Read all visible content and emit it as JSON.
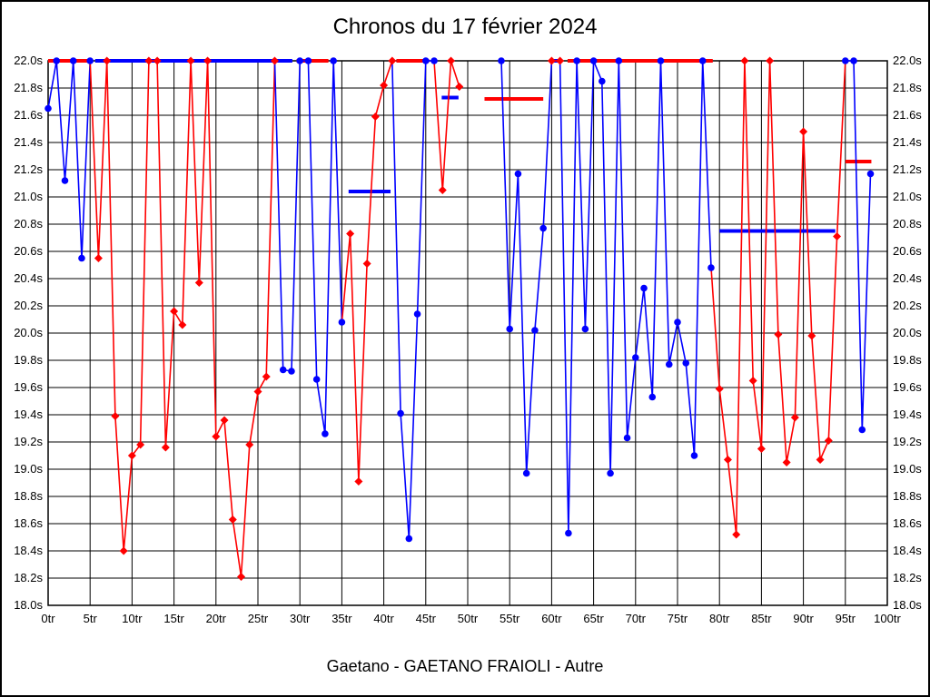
{
  "title": "Chronos du 17 février 2024",
  "footer": "Gaetano - GAETANO FRAIOLI - Autre",
  "chart_data": {
    "type": "line",
    "title": "Chronos du 17 février 2024",
    "subtitle_footer": "Gaetano - GAETANO FRAIOLI - Autre",
    "grid": true,
    "legend": "none",
    "x_axis": {
      "unit": "tr",
      "min": 0,
      "max": 100,
      "tick_step": 5,
      "tick_labels": [
        "0tr",
        "5tr",
        "10tr",
        "15tr",
        "20tr",
        "25tr",
        "30tr",
        "35tr",
        "40tr",
        "45tr",
        "50tr",
        "55tr",
        "60tr",
        "65tr",
        "70tr",
        "75tr",
        "80tr",
        "85tr",
        "90tr",
        "95tr",
        "100tr"
      ]
    },
    "y_axis": {
      "unit": "s",
      "min": 18.0,
      "max": 22.0,
      "tick_step": 0.2,
      "clip_max": 22.0,
      "tick_labels": [
        "22.0s",
        "21.8s",
        "21.6s",
        "21.4s",
        "21.2s",
        "21.0s",
        "20.8s",
        "20.6s",
        "20.4s",
        "20.2s",
        "20.0s",
        "19.8s",
        "19.6s",
        "19.4s",
        "19.2s",
        "19.0s",
        "18.8s",
        "18.6s",
        "18.4s",
        "18.2s",
        "18.0s"
      ],
      "labels_on_both_sides": true
    },
    "colors": {
      "red": "#ff0000",
      "blue": "#0000ff",
      "grid": "#000000",
      "background": "#ffffff"
    },
    "marker_shapes": {
      "blue": "circle",
      "red": "diamond"
    },
    "stints": [
      {
        "name": "stint-1",
        "color": "blue",
        "pre": null,
        "post": null,
        "laps": [
          [
            0,
            21.65
          ],
          [
            1,
            22
          ],
          [
            2,
            21.12
          ],
          [
            3,
            22
          ],
          [
            4,
            20.55
          ],
          [
            5,
            22
          ]
        ]
      },
      {
        "name": "stint-2",
        "color": "red",
        "pre": [
          5,
          22
        ],
        "post": null,
        "laps": [
          [
            6,
            20.55
          ],
          [
            7,
            22
          ],
          [
            8,
            19.39
          ],
          [
            9,
            18.4
          ],
          [
            10,
            19.1
          ],
          [
            11,
            19.18
          ],
          [
            12,
            22
          ],
          [
            13,
            22
          ],
          [
            14,
            19.16
          ],
          [
            15,
            20.16
          ],
          [
            16,
            20.06
          ],
          [
            17,
            22
          ],
          [
            18,
            20.37
          ],
          [
            19,
            22
          ],
          [
            20,
            19.24
          ],
          [
            21,
            19.36
          ],
          [
            22,
            18.63
          ],
          [
            23,
            18.21
          ],
          [
            24,
            19.18
          ],
          [
            25,
            19.57
          ],
          [
            26,
            19.68
          ],
          [
            27,
            22
          ]
        ]
      },
      {
        "name": "stint-3",
        "color": "blue",
        "pre": [
          27,
          22
        ],
        "post": null,
        "laps": [
          [
            28,
            19.73
          ],
          [
            29,
            19.72
          ],
          [
            30,
            22
          ],
          [
            31,
            22
          ],
          [
            32,
            19.66
          ],
          [
            33,
            19.26
          ],
          [
            34,
            22
          ],
          [
            35,
            20.08
          ]
        ]
      },
      {
        "name": "stint-4",
        "color": "red",
        "pre": [
          35,
          20.08
        ],
        "post": null,
        "laps": [
          [
            36,
            20.73
          ],
          [
            37,
            18.91
          ],
          [
            38,
            20.51
          ],
          [
            39,
            21.59
          ],
          [
            40,
            21.82
          ],
          [
            41,
            22
          ]
        ]
      },
      {
        "name": "stint-5",
        "color": "blue",
        "pre": [
          41,
          22
        ],
        "post": null,
        "laps": [
          [
            42,
            19.41
          ],
          [
            43,
            18.49
          ],
          [
            44,
            20.14
          ],
          [
            45,
            22
          ],
          [
            46,
            22
          ]
        ]
      },
      {
        "name": "stint-6",
        "color": "red",
        "pre": [
          46,
          22
        ],
        "post": null,
        "laps": [
          [
            47,
            21.05
          ],
          [
            48,
            22
          ],
          [
            49,
            21.81
          ]
        ]
      },
      {
        "name": "stint-7",
        "color": "blue",
        "pre": null,
        "post": [
          60,
          22
        ],
        "laps": [
          [
            54,
            22
          ],
          [
            55,
            20.03
          ],
          [
            56,
            21.17
          ],
          [
            57,
            18.97
          ],
          [
            58,
            20.02
          ],
          [
            59,
            20.77
          ]
        ]
      },
      {
        "name": "stint-8",
        "color": "red",
        "pre": null,
        "post": null,
        "laps": [
          [
            60,
            22
          ],
          [
            61,
            22
          ]
        ]
      },
      {
        "name": "stint-9",
        "color": "blue",
        "pre": [
          61,
          22
        ],
        "post": null,
        "laps": [
          [
            62,
            18.53
          ],
          [
            63,
            22
          ],
          [
            64,
            20.03
          ],
          [
            65,
            22
          ],
          [
            66,
            21.85
          ],
          [
            67,
            18.97
          ],
          [
            68,
            22
          ],
          [
            69,
            19.23
          ],
          [
            70,
            19.82
          ],
          [
            71,
            20.33
          ],
          [
            72,
            19.53
          ],
          [
            73,
            22
          ],
          [
            74,
            19.77
          ],
          [
            75,
            20.08
          ],
          [
            76,
            19.78
          ],
          [
            77,
            19.1
          ],
          [
            78,
            22
          ],
          [
            79,
            20.48
          ]
        ]
      },
      {
        "name": "stint-10",
        "color": "red",
        "pre": [
          79,
          20.48
        ],
        "post": [
          95,
          22
        ],
        "laps": [
          [
            80,
            19.59
          ],
          [
            81,
            19.07
          ],
          [
            82,
            18.52
          ],
          [
            83,
            22
          ],
          [
            84,
            19.65
          ],
          [
            85,
            19.15
          ],
          [
            86,
            22
          ],
          [
            87,
            19.99
          ],
          [
            88,
            19.05
          ],
          [
            89,
            19.38
          ],
          [
            90,
            21.48
          ],
          [
            91,
            19.98
          ],
          [
            92,
            19.07
          ],
          [
            93,
            19.21
          ],
          [
            94,
            20.71
          ]
        ]
      },
      {
        "name": "stint-11",
        "color": "blue",
        "pre": null,
        "post": null,
        "laps": [
          [
            95,
            22
          ],
          [
            96,
            22
          ],
          [
            97,
            19.29
          ],
          [
            98,
            21.17
          ]
        ]
      }
    ],
    "avg_bars": [
      {
        "color": "red",
        "from": 0,
        "to": 5.3,
        "value": 22
      },
      {
        "color": "blue",
        "from": 5.6,
        "to": 29.1,
        "value": 22
      },
      {
        "color": "red",
        "from": 29.6,
        "to": 33.4,
        "value": 22
      },
      {
        "color": "blue",
        "from": 35.8,
        "to": 40.8,
        "value": 21.04
      },
      {
        "color": "red",
        "from": 41.5,
        "to": 45.4,
        "value": 22
      },
      {
        "color": "blue",
        "from": 46.9,
        "to": 48.9,
        "value": 21.73
      },
      {
        "color": "red",
        "from": 52,
        "to": 59,
        "value": 21.72
      },
      {
        "color": "blue",
        "from": 59.9,
        "to": 61.1,
        "value": 22
      },
      {
        "color": "red",
        "from": 61.9,
        "to": 79.2,
        "value": 22
      },
      {
        "color": "blue",
        "from": 80,
        "to": 93.8,
        "value": 20.75
      },
      {
        "color": "red",
        "from": 95,
        "to": 98.1,
        "value": 21.26
      }
    ]
  }
}
